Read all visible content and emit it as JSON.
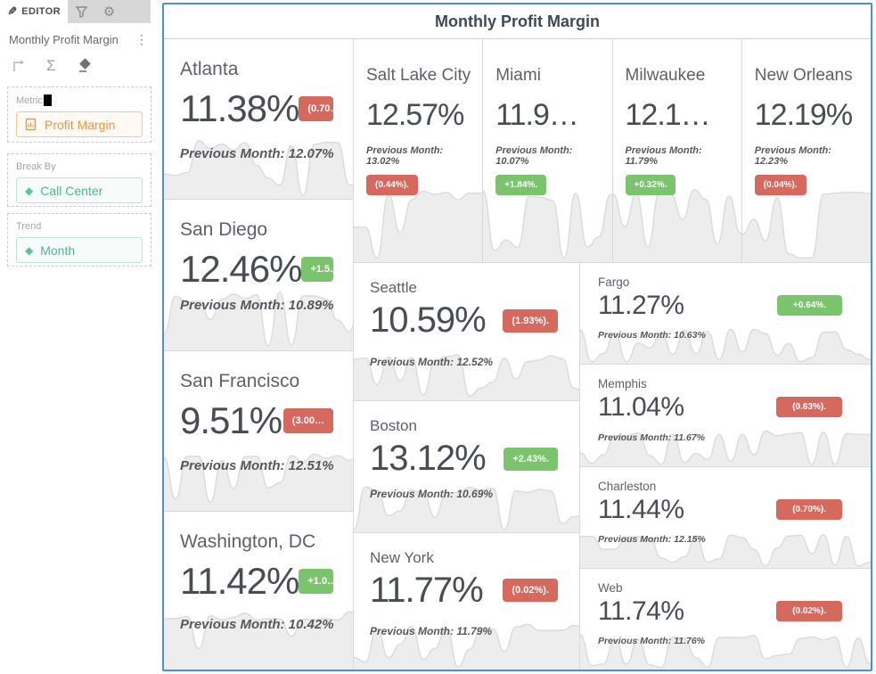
{
  "colors": {
    "accent_blue": "#4a90d9",
    "badge_up_green": "#7cc36e",
    "badge_down_red": "#d5695e",
    "metric_orange": "#e5974b",
    "dimension_teal": "#4fb593"
  },
  "sidebar": {
    "editor_tab_label": "EDITOR",
    "widget_title": "Monthly Profit Margin",
    "sections": {
      "metric": {
        "label": "Metric",
        "chip": "Profit Margin"
      },
      "break_by": {
        "label": "Break By",
        "chip": "Call Center"
      },
      "trend": {
        "label": "Trend",
        "chip": "Month"
      }
    }
  },
  "main": {
    "title": "Monthly Profit Margin",
    "cards": [
      {
        "city": "Atlanta",
        "value": "11.38%",
        "badge": "(0.70…",
        "trend": "down",
        "prev": "Previous Month: 12.07%"
      },
      {
        "city": "San Diego",
        "value": "12.46%",
        "badge": "+1.5…",
        "trend": "up",
        "prev": "Previous Month: 10.89%"
      },
      {
        "city": "San Francisco",
        "value": "9.51%",
        "badge": "(3.00…",
        "trend": "down",
        "prev": "Previous Month: 12.51%"
      },
      {
        "city": "Washington, DC",
        "value": "11.42%",
        "badge": "+1.0…",
        "trend": "up",
        "prev": "Previous Month: 10.42%"
      },
      {
        "city": "Salt Lake City",
        "value": "12.57%",
        "badge": "(0.44%).",
        "trend": "down",
        "prev": "Previous Month: 13.02%"
      },
      {
        "city": "Miami",
        "value": "11.9…",
        "badge": "+1.84%.",
        "trend": "up",
        "prev": "Previous Month: 10.07%"
      },
      {
        "city": "Milwaukee",
        "value": "12.1…",
        "badge": "+0.32%.",
        "trend": "up",
        "prev": "Previous Month: 11.79%"
      },
      {
        "city": "New Orleans",
        "value": "12.19%",
        "badge": "(0.04%).",
        "trend": "down",
        "prev": "Previous Month: 12.23%"
      },
      {
        "city": "Seattle",
        "value": "10.59%",
        "badge": "(1.93%).",
        "trend": "down",
        "prev": "Previous Month: 12.52%"
      },
      {
        "city": "Boston",
        "value": "13.12%",
        "badge": "+2.43%.",
        "trend": "up",
        "prev": "Previous Month: 10.69%"
      },
      {
        "city": "New York",
        "value": "11.77%",
        "badge": "(0.02%).",
        "trend": "down",
        "prev": "Previous Month: 11.79%"
      },
      {
        "city": "Fargo",
        "value": "11.27%",
        "badge": "+0.64%.",
        "trend": "up",
        "prev": "Previous Month: 10.63%"
      },
      {
        "city": "Memphis",
        "value": "11.04%",
        "badge": "(0.63%).",
        "trend": "down",
        "prev": "Previous Month: 11.67%"
      },
      {
        "city": "Charleston",
        "value": "11.44%",
        "badge": "(0.70%).",
        "trend": "down",
        "prev": "Previous Month: 12.15%"
      },
      {
        "city": "Web",
        "value": "11.74%",
        "badge": "(0.02%).",
        "trend": "down",
        "prev": "Previous Month: 11.76%"
      }
    ]
  }
}
